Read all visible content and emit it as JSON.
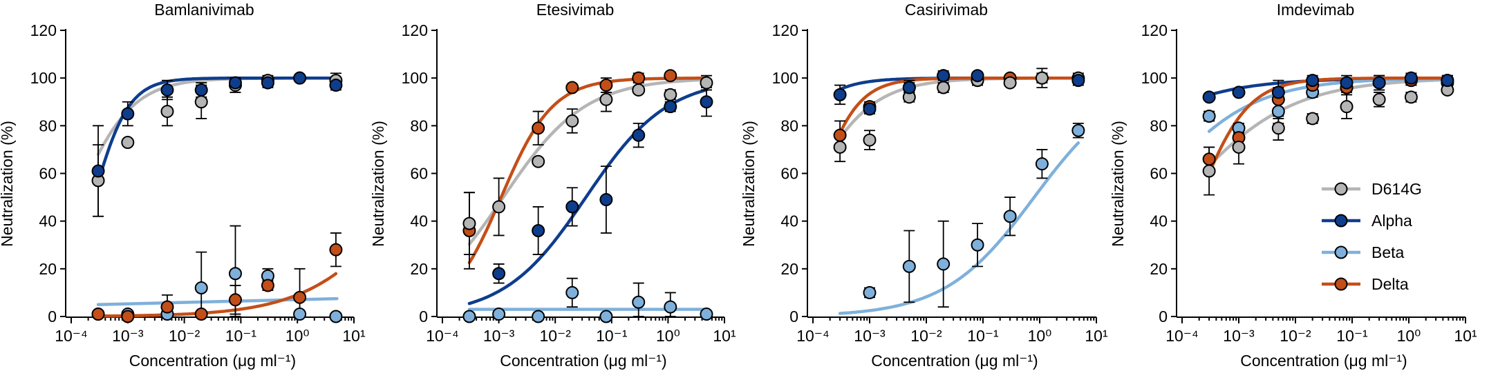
{
  "colors": {
    "D614G": "#b5b5b5",
    "Alpha": "#0e3d8c",
    "Beta": "#7fb0db",
    "Delta": "#c44e18"
  },
  "chart_data": [
    {
      "type": "scatter",
      "title": "Bamlanivimab",
      "xlabel": "Concentration (μg ml⁻¹)",
      "ylabel": "Neutralization (%)",
      "xscale": "log",
      "xlim": [
        0.0001,
        10
      ],
      "ylim": [
        0,
        120
      ],
      "xticks": [
        "10⁻⁴",
        "10⁻³",
        "10⁻²",
        "10⁻¹",
        "10⁰",
        "10¹"
      ],
      "yticks": [
        "0",
        "20",
        "40",
        "60",
        "80",
        "100",
        "120"
      ],
      "x": [
        0.0003,
        0.001,
        0.005,
        0.02,
        0.08,
        0.3,
        1.1,
        4.8
      ],
      "series": [
        {
          "name": "D614G",
          "values": [
            57,
            73,
            86,
            90,
            97,
            99,
            100,
            99
          ],
          "err": [
            15,
            0,
            6,
            7,
            3,
            2,
            1,
            3
          ],
          "fit": {
            "model": "hill",
            "bottom": 0,
            "top": 100,
            "ec50": 0.00013,
            "hill": 0.9
          }
        },
        {
          "name": "Alpha",
          "values": [
            61,
            85,
            95,
            95,
            98,
            98,
            100,
            97
          ],
          "err": [
            19,
            5,
            4,
            3,
            2,
            2,
            1,
            2
          ],
          "fit": {
            "model": "hill",
            "bottom": 0,
            "top": 100,
            "ec50": 0.00025,
            "hill": 1.4
          }
        },
        {
          "name": "Beta",
          "values": [
            1,
            1,
            1,
            12,
            18,
            17,
            1,
            0
          ],
          "err": [
            0,
            0,
            0,
            15,
            20,
            3,
            0,
            0
          ],
          "fit": {
            "model": "linear-log",
            "x": [
              0.0003,
              5
            ],
            "y": [
              5,
              7.5
            ]
          }
        },
        {
          "name": "Delta",
          "values": [
            1,
            0,
            4,
            1,
            7,
            13,
            8,
            28
          ],
          "err": [
            0,
            0,
            5,
            0,
            6,
            2,
            12,
            7
          ],
          "fit": {
            "model": "hill",
            "bottom": 0,
            "top": 100,
            "ec50": 100,
            "hill": 0.5
          }
        }
      ]
    },
    {
      "type": "scatter",
      "title": "Etesivimab",
      "xlabel": "Concentration (μg ml⁻¹)",
      "ylabel": "Neutralization (%)",
      "xscale": "log",
      "xlim": [
        0.0001,
        10
      ],
      "ylim": [
        0,
        120
      ],
      "xticks": [
        "10⁻⁴",
        "10⁻³",
        "10⁻²",
        "10⁻¹",
        "10⁰",
        "10¹"
      ],
      "yticks": [
        "0",
        "20",
        "40",
        "60",
        "80",
        "100",
        "120"
      ],
      "x": [
        0.0003,
        0.001,
        0.005,
        0.02,
        0.08,
        0.3,
        1.1,
        4.8
      ],
      "series": [
        {
          "name": "D614G",
          "values": [
            39,
            46,
            65,
            82,
            91,
            95,
            93,
            98
          ],
          "err": [
            13,
            12,
            0,
            5,
            5,
            0,
            2,
            3
          ],
          "fit": {
            "model": "hill",
            "bottom": 0,
            "top": 100,
            "ec50": 0.0012,
            "hill": 0.6
          }
        },
        {
          "name": "Alpha",
          "values": [
            null,
            18,
            36,
            46,
            49,
            76,
            88,
            90
          ],
          "err": [
            0,
            4,
            10,
            8,
            14,
            5,
            2,
            6
          ],
          "fit": {
            "model": "hill",
            "bottom": 0,
            "top": 100,
            "ec50": 0.035,
            "hill": 0.6,
            "xmin": 0.0003
          }
        },
        {
          "name": "Beta",
          "values": [
            0,
            1,
            0,
            10,
            0,
            6,
            4,
            1
          ],
          "err": [
            0,
            0,
            0,
            6,
            0,
            8,
            6,
            0
          ],
          "fit": {
            "model": "linear-log",
            "x": [
              0.0003,
              5
            ],
            "y": [
              3,
              3
            ]
          }
        },
        {
          "name": "Delta",
          "values": [
            36,
            null,
            79,
            96,
            97,
            100,
            101,
            null
          ],
          "err": [
            16,
            0,
            7,
            0,
            3,
            2,
            0,
            0
          ],
          "fit": {
            "model": "hill",
            "bottom": 0,
            "top": 100,
            "ec50": 0.0011,
            "hill": 0.95
          }
        }
      ]
    },
    {
      "type": "scatter",
      "title": "Casirivimab",
      "xlabel": "Concentration (μg ml⁻¹)",
      "ylabel": "Neutralization (%)",
      "xscale": "log",
      "xlim": [
        0.0001,
        10
      ],
      "ylim": [
        0,
        120
      ],
      "xticks": [
        "10⁻⁴",
        "10⁻³",
        "10⁻²",
        "10⁻¹",
        "10⁰",
        "10¹"
      ],
      "yticks": [
        "0",
        "20",
        "40",
        "60",
        "80",
        "100",
        "120"
      ],
      "x": [
        0.0003,
        0.001,
        0.005,
        0.02,
        0.08,
        0.3,
        1.1,
        4.8
      ],
      "series": [
        {
          "name": "D614G",
          "values": [
            71,
            74,
            92,
            96,
            99,
            98,
            100,
            100
          ],
          "err": [
            6,
            4,
            2,
            2,
            1,
            1,
            4,
            2
          ],
          "fit": {
            "model": "hill",
            "bottom": 0,
            "top": 100,
            "ec50": 7e-05,
            "hill": 0.75
          }
        },
        {
          "name": "Alpha",
          "values": [
            93,
            87,
            96,
            101,
            101,
            null,
            null,
            99
          ],
          "err": [
            4,
            2,
            3,
            2,
            1,
            0,
            0,
            2
          ],
          "fit": {
            "model": "hill",
            "bottom": 0,
            "top": 100,
            "ec50": 1.5e-05,
            "hill": 1.0
          }
        },
        {
          "name": "Beta",
          "values": [
            null,
            10,
            21,
            22,
            30,
            42,
            64,
            78
          ],
          "err": [
            0,
            2,
            15,
            18,
            9,
            8,
            6,
            3
          ],
          "fit": {
            "model": "hill",
            "bottom": 0,
            "top": 100,
            "ec50": 0.8,
            "hill": 0.55
          }
        },
        {
          "name": "Delta",
          "values": [
            76,
            88,
            96,
            101,
            99,
            100,
            100,
            null
          ],
          "err": [
            6,
            2,
            2,
            1,
            2,
            1,
            2,
            0
          ],
          "fit": {
            "model": "hill",
            "bottom": 0,
            "top": 100,
            "ec50": 0.00011,
            "hill": 1.2
          }
        }
      ]
    },
    {
      "type": "scatter",
      "title": "Imdevimab",
      "xlabel": "Concentration (μg ml⁻¹)",
      "ylabel": "Neutralization (%)",
      "xscale": "log",
      "xlim": [
        0.0001,
        10
      ],
      "ylim": [
        0,
        120
      ],
      "xticks": [
        "10⁻⁴",
        "10⁻³",
        "10⁻²",
        "10⁻¹",
        "10⁰",
        "10¹"
      ],
      "yticks": [
        "0",
        "20",
        "40",
        "60",
        "80",
        "100",
        "120"
      ],
      "x": [
        0.0003,
        0.001,
        0.005,
        0.02,
        0.08,
        0.3,
        1.1,
        4.8
      ],
      "legend": {
        "placement": "right",
        "entries": [
          "D614G",
          "Alpha",
          "Beta",
          "Delta"
        ]
      },
      "series": [
        {
          "name": "D614G",
          "values": [
            61,
            71,
            79,
            83,
            88,
            91,
            92,
            95
          ],
          "err": [
            10,
            7,
            5,
            2,
            5,
            3,
            2,
            1
          ],
          "fit": {
            "model": "hill",
            "bottom": 0,
            "top": 100,
            "ec50": 9e-05,
            "hill": 0.45
          }
        },
        {
          "name": "Alpha",
          "values": [
            92,
            94,
            94,
            99,
            98,
            98,
            100,
            99
          ],
          "err": [
            1,
            1,
            2,
            2,
            3,
            3,
            2,
            2
          ],
          "fit": {
            "model": "hill",
            "bottom": 0,
            "top": 100,
            "ec50": 1e-06,
            "hill": 0.45
          }
        },
        {
          "name": "Beta",
          "values": [
            84,
            79,
            86,
            94,
            96,
            null,
            99,
            98
          ],
          "err": [
            2,
            2,
            5,
            2,
            2,
            0,
            2,
            1
          ],
          "fit": {
            "model": "hill",
            "bottom": 0,
            "top": 100,
            "ec50": 2.5e-05,
            "hill": 0.5
          }
        },
        {
          "name": "Delta",
          "values": [
            66,
            75,
            91,
            97,
            96,
            98,
            99,
            99
          ],
          "err": [
            5,
            5,
            8,
            3,
            3,
            3,
            2,
            2
          ],
          "fit": {
            "model": "hill",
            "bottom": 0,
            "top": 100,
            "ec50": 0.0002,
            "hill": 1.0
          }
        }
      ]
    }
  ]
}
